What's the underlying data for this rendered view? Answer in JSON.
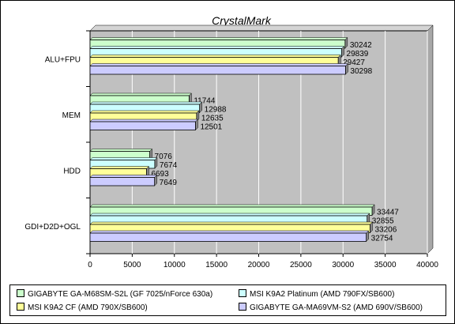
{
  "chart_data": {
    "type": "bar",
    "orientation": "horizontal",
    "title": "CrystalMark",
    "categories": [
      "ALU+FPU",
      "MEM",
      "HDD",
      "GDI+D2D+OGL"
    ],
    "series": [
      {
        "name": "GIGABYTE GA-M68SM-S2L (GF 7025/nForce 630a)",
        "color": "#ccffcc",
        "values": [
          30242,
          11744,
          7076,
          33447
        ]
      },
      {
        "name": "MSI K9A2 Platinum (AMD 790FX/SB600)",
        "color": "#ccffff",
        "values": [
          29839,
          12988,
          7674,
          32855
        ]
      },
      {
        "name": "MSI K9A2 CF (AMD 790X/SB600)",
        "color": "#ffff99",
        "values": [
          29427,
          12635,
          6693,
          33206
        ]
      },
      {
        "name": "GIGABYTE GA-MA69VM-S2 (AMD 690V/SB600)",
        "color": "#ccccff",
        "values": [
          30298,
          12501,
          7649,
          32754
        ]
      }
    ],
    "xlim": [
      0,
      40000
    ],
    "xticks": [
      0,
      5000,
      10000,
      15000,
      20000,
      25000,
      30000,
      35000,
      40000
    ],
    "grid": true,
    "legend_position": "bottom",
    "plot_background": "#c0c0c0"
  }
}
